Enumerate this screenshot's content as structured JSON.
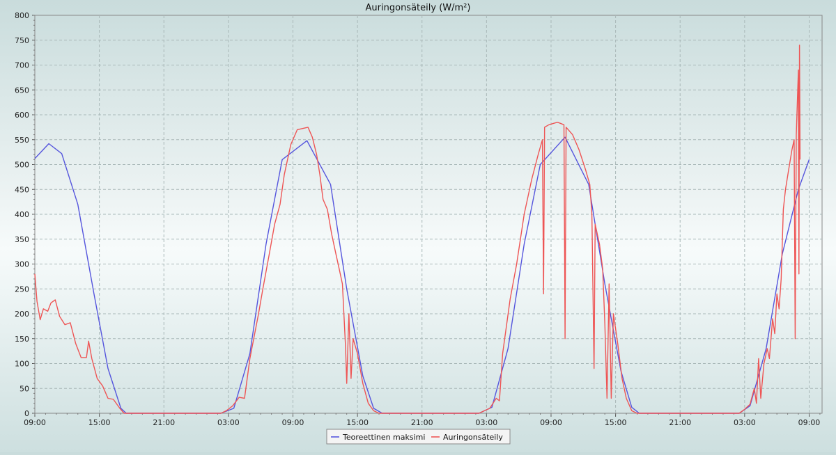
{
  "chart_data": {
    "type": "line",
    "title": "Auringonsäteily (W/m²)",
    "xlabel": "",
    "ylabel": "",
    "ylim": [
      0,
      800
    ],
    "yticks": [
      0,
      50,
      100,
      150,
      200,
      250,
      300,
      350,
      400,
      450,
      500,
      550,
      600,
      650,
      700,
      750,
      800
    ],
    "xlim_hours": [
      9,
      82.2
    ],
    "xticks": [
      {
        "h": 9,
        "label": "09:00"
      },
      {
        "h": 15,
        "label": "15:00"
      },
      {
        "h": 21,
        "label": "21:00"
      },
      {
        "h": 27,
        "label": "03:00"
      },
      {
        "h": 33,
        "label": "09:00"
      },
      {
        "h": 39,
        "label": "15:00"
      },
      {
        "h": 45,
        "label": "21:00"
      },
      {
        "h": 51,
        "label": "03:00"
      },
      {
        "h": 57,
        "label": "09:00"
      },
      {
        "h": 63,
        "label": "15:00"
      },
      {
        "h": 69,
        "label": "21:00"
      },
      {
        "h": 75,
        "label": "03:00"
      },
      {
        "h": 81,
        "label": "09:00"
      }
    ],
    "grid": true,
    "legend_position": "bottom-center",
    "series": [
      {
        "name": "Teoreettinen maksimi",
        "color": "#5555dd",
        "points": [
          [
            9.0,
            512
          ],
          [
            10.3,
            542
          ],
          [
            11.5,
            522
          ],
          [
            13.0,
            420
          ],
          [
            14.5,
            240
          ],
          [
            15.8,
            90
          ],
          [
            17.0,
            10
          ],
          [
            17.5,
            0
          ],
          [
            26.3,
            0
          ],
          [
            27.5,
            10
          ],
          [
            29.0,
            120
          ],
          [
            30.5,
            340
          ],
          [
            32.0,
            510
          ],
          [
            34.3,
            548
          ],
          [
            36.5,
            460
          ],
          [
            38.0,
            250
          ],
          [
            39.5,
            75
          ],
          [
            40.5,
            10
          ],
          [
            41.3,
            0
          ],
          [
            50.3,
            0
          ],
          [
            51.5,
            12
          ],
          [
            53.0,
            130
          ],
          [
            54.5,
            340
          ],
          [
            56.0,
            500
          ],
          [
            58.3,
            555
          ],
          [
            60.5,
            460
          ],
          [
            62.0,
            260
          ],
          [
            63.5,
            85
          ],
          [
            64.5,
            12
          ],
          [
            65.2,
            0
          ],
          [
            74.5,
            0
          ],
          [
            75.5,
            15
          ],
          [
            77.0,
            130
          ],
          [
            78.5,
            320
          ],
          [
            80.0,
            450
          ],
          [
            81.0,
            510
          ]
        ]
      },
      {
        "name": "Auringonsäteily",
        "color": "#ee5555",
        "points": [
          [
            9.0,
            280
          ],
          [
            9.2,
            225
          ],
          [
            9.5,
            188
          ],
          [
            9.8,
            210
          ],
          [
            10.2,
            205
          ],
          [
            10.5,
            222
          ],
          [
            10.9,
            228
          ],
          [
            11.3,
            195
          ],
          [
            11.8,
            178
          ],
          [
            12.3,
            182
          ],
          [
            12.8,
            140
          ],
          [
            13.3,
            112
          ],
          [
            13.8,
            112
          ],
          [
            14.0,
            145
          ],
          [
            14.3,
            110
          ],
          [
            14.8,
            70
          ],
          [
            15.3,
            55
          ],
          [
            15.8,
            30
          ],
          [
            16.3,
            28
          ],
          [
            16.9,
            10
          ],
          [
            17.3,
            0
          ],
          [
            26.3,
            0
          ],
          [
            26.8,
            5
          ],
          [
            27.4,
            15
          ],
          [
            28.0,
            32
          ],
          [
            28.5,
            30
          ],
          [
            29.0,
            110
          ],
          [
            29.8,
            200
          ],
          [
            30.2,
            250
          ],
          [
            30.8,
            320
          ],
          [
            31.3,
            380
          ],
          [
            31.8,
            420
          ],
          [
            32.2,
            480
          ],
          [
            32.8,
            540
          ],
          [
            33.4,
            570
          ],
          [
            34.4,
            575
          ],
          [
            34.8,
            555
          ],
          [
            35.2,
            520
          ],
          [
            35.5,
            480
          ],
          [
            35.8,
            430
          ],
          [
            36.2,
            410
          ],
          [
            36.6,
            360
          ],
          [
            37.0,
            320
          ],
          [
            37.3,
            290
          ],
          [
            37.6,
            260
          ],
          [
            37.9,
            130
          ],
          [
            38.0,
            60
          ],
          [
            38.2,
            200
          ],
          [
            38.4,
            70
          ],
          [
            38.6,
            150
          ],
          [
            39.0,
            120
          ],
          [
            39.5,
            60
          ],
          [
            40.0,
            20
          ],
          [
            40.5,
            5
          ],
          [
            41.0,
            0
          ],
          [
            50.3,
            0
          ],
          [
            50.8,
            5
          ],
          [
            51.3,
            10
          ],
          [
            51.9,
            30
          ],
          [
            52.2,
            25
          ],
          [
            52.5,
            120
          ],
          [
            53.2,
            230
          ],
          [
            53.8,
            300
          ],
          [
            54.5,
            400
          ],
          [
            55.2,
            470
          ],
          [
            55.8,
            520
          ],
          [
            56.2,
            550
          ],
          [
            56.3,
            240
          ],
          [
            56.4,
            575
          ],
          [
            56.8,
            580
          ],
          [
            57.6,
            585
          ],
          [
            58.2,
            580
          ],
          [
            58.3,
            150
          ],
          [
            58.4,
            575
          ],
          [
            59.0,
            560
          ],
          [
            59.6,
            530
          ],
          [
            60.2,
            490
          ],
          [
            60.6,
            460
          ],
          [
            60.8,
            400
          ],
          [
            61.0,
            90
          ],
          [
            61.1,
            380
          ],
          [
            61.5,
            340
          ],
          [
            61.8,
            290
          ],
          [
            62.0,
            180
          ],
          [
            62.2,
            30
          ],
          [
            62.4,
            260
          ],
          [
            62.6,
            30
          ],
          [
            62.8,
            200
          ],
          [
            63.2,
            140
          ],
          [
            63.6,
            70
          ],
          [
            64.0,
            30
          ],
          [
            64.5,
            5
          ],
          [
            65.0,
            0
          ],
          [
            74.5,
            0
          ],
          [
            75.0,
            8
          ],
          [
            75.5,
            18
          ],
          [
            75.9,
            50
          ],
          [
            76.1,
            20
          ],
          [
            76.3,
            110
          ],
          [
            76.5,
            30
          ],
          [
            76.8,
            100
          ],
          [
            77.1,
            130
          ],
          [
            77.3,
            110
          ],
          [
            77.6,
            190
          ],
          [
            77.8,
            160
          ],
          [
            78.0,
            240
          ],
          [
            78.2,
            210
          ],
          [
            78.4,
            270
          ],
          [
            78.6,
            410
          ],
          [
            78.8,
            450
          ],
          [
            79.1,
            490
          ],
          [
            79.4,
            530
          ],
          [
            79.6,
            550
          ],
          [
            79.7,
            150
          ],
          [
            79.8,
            560
          ],
          [
            80.0,
            690
          ],
          [
            80.05,
            280
          ],
          [
            80.1,
            740
          ],
          [
            80.15,
            510
          ]
        ]
      }
    ]
  }
}
